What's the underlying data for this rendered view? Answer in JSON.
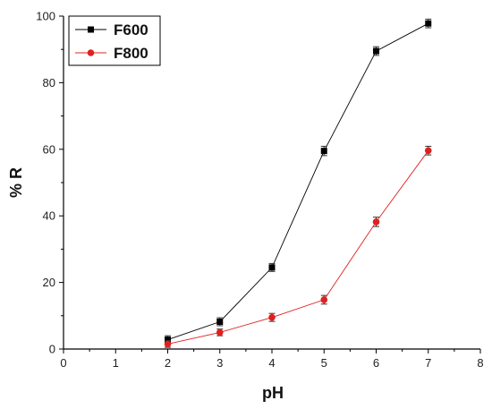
{
  "chart_data": {
    "type": "line",
    "title": "",
    "xlabel": "pH",
    "ylabel": "% R",
    "xlim": [
      0,
      8
    ],
    "ylim": [
      0,
      100
    ],
    "xticks": [
      0,
      1,
      2,
      3,
      4,
      5,
      6,
      7,
      8
    ],
    "yticks": [
      0,
      20,
      40,
      60,
      80,
      100
    ],
    "grid": false,
    "legend_position": "top-left",
    "series": [
      {
        "name": "F600",
        "color": "#000000",
        "marker": "square",
        "x": [
          2,
          3,
          4,
          5,
          6,
          7
        ],
        "y": [
          2.8,
          8.2,
          24.5,
          59.5,
          89.5,
          97.8
        ],
        "error": [
          1.2,
          1.2,
          1.2,
          1.4,
          1.3,
          1.3
        ]
      },
      {
        "name": "F800",
        "color": "#e02020",
        "marker": "circle",
        "x": [
          2,
          3,
          4,
          5,
          6,
          7
        ],
        "y": [
          1.5,
          5.0,
          9.5,
          14.8,
          38.2,
          59.6
        ],
        "error": [
          1.0,
          1.0,
          1.2,
          1.3,
          1.4,
          1.3
        ]
      }
    ]
  }
}
